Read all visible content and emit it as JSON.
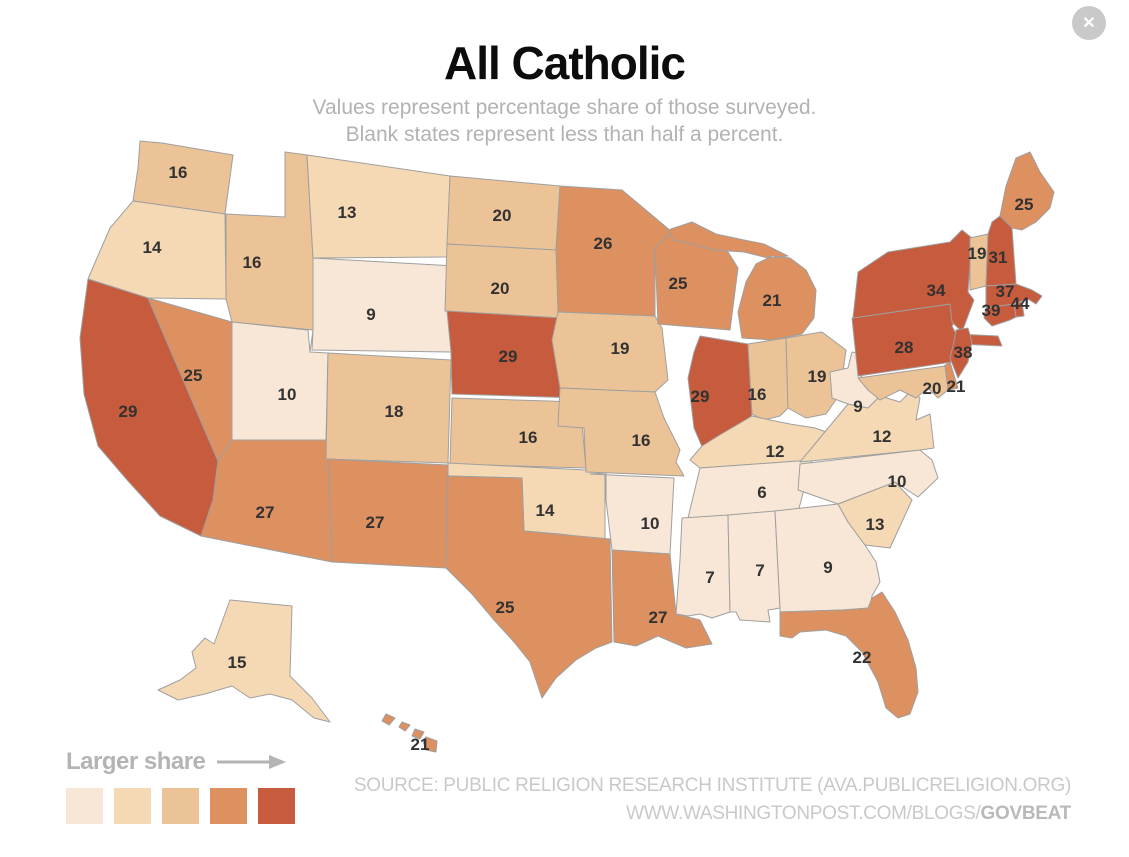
{
  "modal": {
    "close_label": "✕"
  },
  "header": {
    "title": "All Catholic",
    "subtitle_line1": "Values represent percentage share of those surveyed.",
    "subtitle_line2": "Blank states represent less than half a percent."
  },
  "legend": {
    "label": "Larger share",
    "arrow_icon": "right-arrow",
    "colors": [
      "#f8e7d6",
      "#f5d9b5",
      "#ecc397",
      "#dd9060",
      "#c65b3d"
    ]
  },
  "footer": {
    "source_line1": "SOURCE: PUBLIC RELIGION RESEARCH INSTITUTE (AVA.PUBLICRELIGION.ORG)",
    "source_line2_prefix": "WWW.WASHINGTONPOST.COM/BLOGS/",
    "source_line2_bold": "GOVBEAT"
  },
  "chart_data": {
    "type": "choropleth",
    "title": "All Catholic",
    "unit": "percentage share of those surveyed",
    "note": "Blank states represent less than half a percent",
    "legend_label": "Larger share",
    "bins": {
      "thresholds": [
        11,
        16,
        21,
        28
      ],
      "colors": [
        "#f8e7d6",
        "#f5d9b5",
        "#ecc397",
        "#dd9060",
        "#c65b3d"
      ]
    },
    "states": [
      {
        "state": "WA",
        "name": "Washington",
        "value": 16
      },
      {
        "state": "OR",
        "name": "Oregon",
        "value": 14
      },
      {
        "state": "CA",
        "name": "California",
        "value": 29
      },
      {
        "state": "ID",
        "name": "Idaho",
        "value": 16
      },
      {
        "state": "NV",
        "name": "Nevada",
        "value": 25
      },
      {
        "state": "UT",
        "name": "Utah",
        "value": 10
      },
      {
        "state": "AZ",
        "name": "Arizona",
        "value": 27
      },
      {
        "state": "MT",
        "name": "Montana",
        "value": 13
      },
      {
        "state": "WY",
        "name": "Wyoming",
        "value": 9
      },
      {
        "state": "CO",
        "name": "Colorado",
        "value": 18
      },
      {
        "state": "NM",
        "name": "New Mexico",
        "value": 27
      },
      {
        "state": "ND",
        "name": "North Dakota",
        "value": 20
      },
      {
        "state": "SD",
        "name": "South Dakota",
        "value": 20
      },
      {
        "state": "NE",
        "name": "Nebraska",
        "value": 29
      },
      {
        "state": "KS",
        "name": "Kansas",
        "value": 16
      },
      {
        "state": "OK",
        "name": "Oklahoma",
        "value": 14
      },
      {
        "state": "TX",
        "name": "Texas",
        "value": 25
      },
      {
        "state": "MN",
        "name": "Minnesota",
        "value": 26
      },
      {
        "state": "IA",
        "name": "Iowa",
        "value": 19
      },
      {
        "state": "MO",
        "name": "Missouri",
        "value": 16
      },
      {
        "state": "AR",
        "name": "Arkansas",
        "value": 10
      },
      {
        "state": "LA",
        "name": "Louisiana",
        "value": 27
      },
      {
        "state": "WI",
        "name": "Wisconsin",
        "value": 25
      },
      {
        "state": "IL",
        "name": "Illinois",
        "value": 29
      },
      {
        "state": "MI",
        "name": "Michigan",
        "value": 21
      },
      {
        "state": "IN",
        "name": "Indiana",
        "value": 16
      },
      {
        "state": "OH",
        "name": "Ohio",
        "value": 19
      },
      {
        "state": "KY",
        "name": "Kentucky",
        "value": 12
      },
      {
        "state": "TN",
        "name": "Tennessee",
        "value": 6
      },
      {
        "state": "MS",
        "name": "Mississippi",
        "value": 7
      },
      {
        "state": "AL",
        "name": "Alabama",
        "value": 7
      },
      {
        "state": "GA",
        "name": "Georgia",
        "value": 9
      },
      {
        "state": "FL",
        "name": "Florida",
        "value": 22
      },
      {
        "state": "SC",
        "name": "South Carolina",
        "value": 13
      },
      {
        "state": "NC",
        "name": "North Carolina",
        "value": 10
      },
      {
        "state": "VA",
        "name": "Virginia",
        "value": 12
      },
      {
        "state": "WV",
        "name": "West Virginia",
        "value": 9
      },
      {
        "state": "PA",
        "name": "Pennsylvania",
        "value": 28
      },
      {
        "state": "NY",
        "name": "New York",
        "value": 34
      },
      {
        "state": "NJ",
        "name": "New Jersey",
        "value": 38
      },
      {
        "state": "DE",
        "name": "Delaware",
        "value": 21
      },
      {
        "state": "MD",
        "name": "Maryland",
        "value": 20
      },
      {
        "state": "ME",
        "name": "Maine",
        "value": 25
      },
      {
        "state": "VT",
        "name": "Vermont",
        "value": 19
      },
      {
        "state": "NH",
        "name": "New Hampshire",
        "value": 31
      },
      {
        "state": "MA",
        "name": "Massachusetts",
        "value": 37
      },
      {
        "state": "RI",
        "name": "Rhode Island",
        "value": 44
      },
      {
        "state": "CT",
        "name": "Connecticut",
        "value": 39
      },
      {
        "state": "AK",
        "name": "Alaska",
        "value": 15
      },
      {
        "state": "HI",
        "name": "Hawaii",
        "value": 21
      }
    ]
  }
}
